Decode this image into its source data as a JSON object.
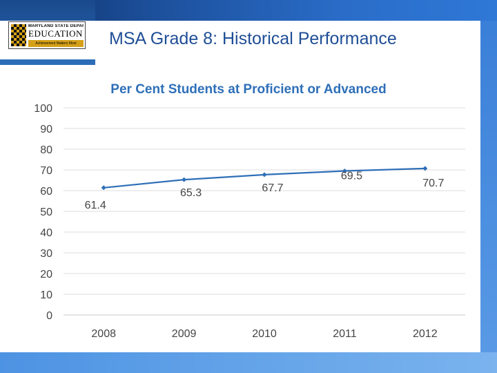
{
  "header": {
    "title": "MSA Grade 8: Historical Performance"
  },
  "logo": {
    "top_text": "MARYLAND STATE DEPARTMENT OF",
    "main_text": "EDUCATION",
    "tagline": "Achievement Matters Most"
  },
  "colors": {
    "header_gradient_start": "#0e2f66",
    "header_gradient_end": "#2f78d6",
    "title_text": "#1f4e96",
    "chart_title": "#2e6fb8",
    "line_series": "#2e6fb8"
  },
  "chart_data": {
    "type": "line",
    "title": "Per Cent Students at Proficient or Advanced",
    "xlabel": "",
    "ylabel": "",
    "categories": [
      "2008",
      "2009",
      "2010",
      "2011",
      "2012"
    ],
    "series": [
      {
        "values": [
          61.4,
          65.3,
          67.7,
          69.5,
          70.7
        ],
        "data_labels": [
          "61.4",
          "65.3",
          "67.7",
          "69.5",
          "70.7"
        ]
      }
    ],
    "ylim": [
      0,
      100
    ],
    "yticks": [
      "0",
      "10",
      "20",
      "30",
      "40",
      "50",
      "60",
      "70",
      "80",
      "90",
      "100"
    ],
    "grid": true,
    "legend": "none"
  }
}
